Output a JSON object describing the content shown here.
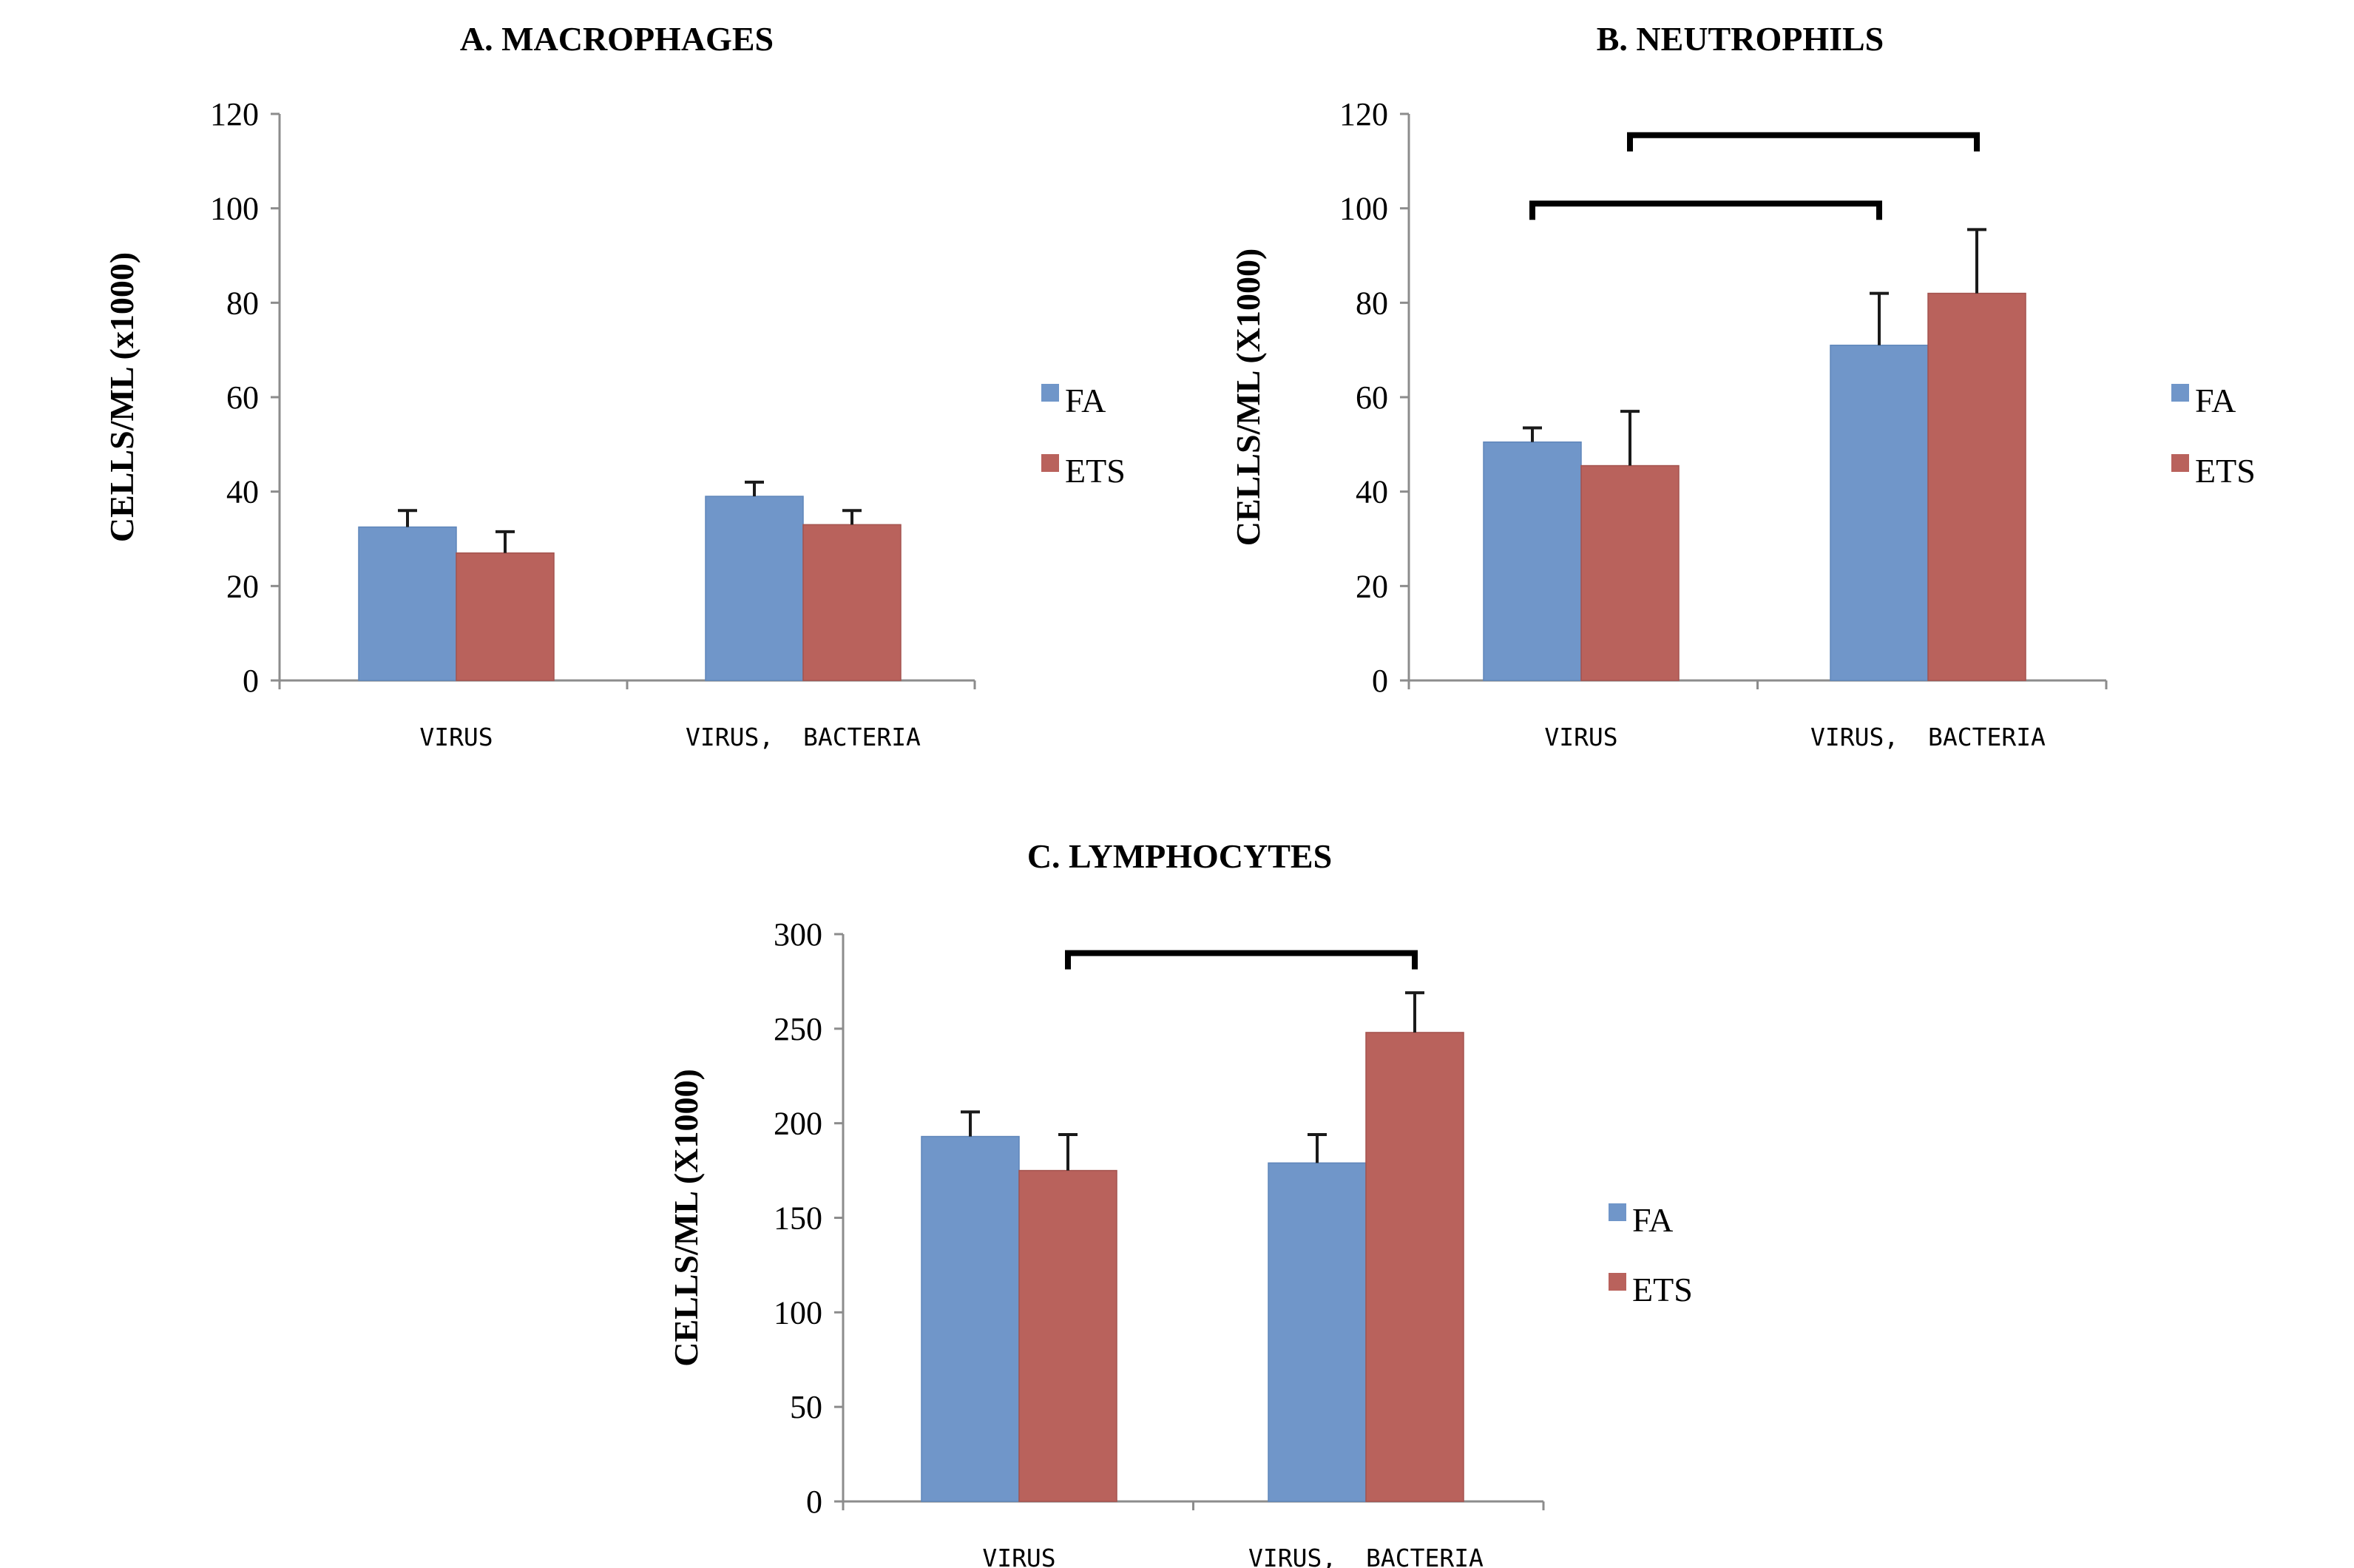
{
  "chart_data": [
    {
      "type": "bar",
      "title": "A. MACROPHAGES",
      "xlabel": "",
      "ylabel": "CELLS/ML (x1000)",
      "ylim": [
        0,
        120
      ],
      "yticks": [
        0,
        20,
        40,
        60,
        80,
        100,
        120
      ],
      "categories": [
        "VIRUS",
        "VIRUS,  BACTERIA"
      ],
      "series": [
        {
          "name": "FA",
          "color": "#7096c9",
          "values": [
            32.5,
            39
          ],
          "errors": [
            3.5,
            3
          ]
        },
        {
          "name": "ETS",
          "color": "#b9625c",
          "values": [
            27,
            33
          ],
          "errors": [
            4.5,
            3
          ]
        }
      ],
      "legend": {
        "position": "right",
        "entries": [
          "FA",
          "ETS"
        ]
      },
      "significance": []
    },
    {
      "type": "bar",
      "title": "B. NEUTROPHILS",
      "xlabel": "",
      "ylabel": "CELLS/ML (X1000)",
      "ylim": [
        0,
        120
      ],
      "yticks": [
        0,
        20,
        40,
        60,
        80,
        100,
        120
      ],
      "categories": [
        "VIRUS",
        "VIRUS,  BACTERIA"
      ],
      "series": [
        {
          "name": "FA",
          "color": "#7096c9",
          "values": [
            50.5,
            71
          ],
          "errors": [
            3,
            11
          ]
        },
        {
          "name": "ETS",
          "color": "#b9625c",
          "values": [
            45.5,
            82
          ],
          "errors": [
            11.5,
            13.5
          ]
        }
      ],
      "legend": {
        "position": "right",
        "entries": [
          "FA",
          "ETS"
        ]
      },
      "significance": [
        {
          "from_category": 0,
          "from_series": 0,
          "to_category": 1,
          "to_series": 0,
          "level": 101
        },
        {
          "from_category": 0,
          "from_series": 1,
          "to_category": 1,
          "to_series": 1,
          "level": 115.5
        }
      ]
    },
    {
      "type": "bar",
      "title": "C. LYMPHOCYTES",
      "xlabel": "",
      "ylabel": "CELLS/ML (X1000)",
      "ylim": [
        0,
        300
      ],
      "yticks": [
        0,
        50,
        100,
        150,
        200,
        250,
        300
      ],
      "categories": [
        "VIRUS",
        "VIRUS,  BACTERIA"
      ],
      "series": [
        {
          "name": "FA",
          "color": "#7096c9",
          "values": [
            193,
            179
          ],
          "errors": [
            13,
            15
          ]
        },
        {
          "name": "ETS",
          "color": "#b9625c",
          "values": [
            175,
            248
          ],
          "errors": [
            19,
            21
          ]
        }
      ],
      "legend": {
        "position": "right",
        "entries": [
          "FA",
          "ETS"
        ]
      },
      "significance": [
        {
          "from_category": 0,
          "from_series": 1,
          "to_category": 1,
          "to_series": 1,
          "level": 290
        }
      ]
    }
  ]
}
